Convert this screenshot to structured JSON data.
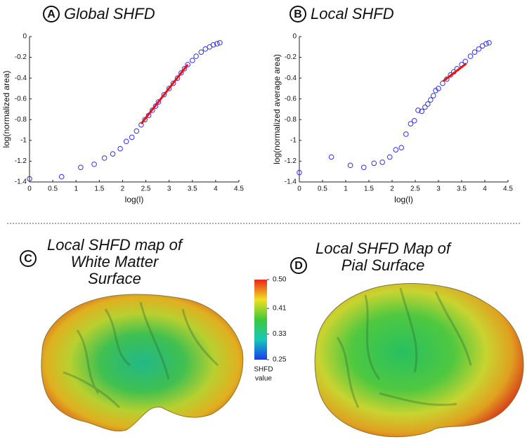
{
  "chart_data": [
    {
      "type": "scatter",
      "label": "A",
      "title": "Global SHFD",
      "xlabel": "log(l)",
      "ylabel": "log(normalized area)",
      "xlim": [
        0,
        4.5
      ],
      "ylim": [
        -1.4,
        0
      ],
      "xticks": [
        0,
        0.5,
        1,
        1.5,
        2,
        2.5,
        3,
        3.5,
        4,
        4.5
      ],
      "yticks": [
        -1.4,
        -1.2,
        -1,
        -0.8,
        -0.6,
        -0.4,
        -0.2,
        0
      ],
      "series": [
        {
          "color": "#3333ee",
          "marker": "circle",
          "x": [
            0,
            0.69,
            1.1,
            1.39,
            1.61,
            1.79,
            1.95,
            2.08,
            2.2,
            2.3,
            2.4,
            2.48,
            2.56,
            2.64,
            2.71,
            2.77,
            2.89,
            3.0,
            3.09,
            3.18,
            3.26,
            3.33,
            3.4,
            3.5,
            3.58,
            3.69,
            3.78,
            3.87,
            3.95,
            4.03,
            4.09
          ],
          "values": [
            -1.37,
            -1.35,
            -1.26,
            -1.23,
            -1.17,
            -1.13,
            -1.08,
            -1.01,
            -0.97,
            -0.91,
            -0.85,
            -0.8,
            -0.76,
            -0.71,
            -0.67,
            -0.63,
            -0.56,
            -0.5,
            -0.45,
            -0.4,
            -0.35,
            -0.31,
            -0.27,
            -0.23,
            -0.19,
            -0.15,
            -0.12,
            -0.1,
            -0.08,
            -0.07,
            -0.06
          ]
        },
        {
          "color": "#ee1111",
          "marker": "line",
          "x": [
            2.4,
            3.4
          ],
          "values": [
            -0.84,
            -0.27
          ]
        }
      ]
    },
    {
      "type": "scatter",
      "label": "B",
      "title": "Local SHFD",
      "xlabel": "log(l)",
      "ylabel": "log(normalized average area)",
      "xlim": [
        0,
        4.5
      ],
      "ylim": [
        -1.4,
        0
      ],
      "xticks": [
        0,
        0.5,
        1,
        1.5,
        2,
        2.5,
        3,
        3.5,
        4,
        4.5
      ],
      "yticks": [
        -1.4,
        -1.2,
        -1,
        -0.8,
        -0.6,
        -0.4,
        -0.2,
        0
      ],
      "series": [
        {
          "color": "#3333ee",
          "marker": "circle",
          "x": [
            0,
            0.69,
            1.1,
            1.39,
            1.61,
            1.79,
            1.95,
            2.08,
            2.2,
            2.3,
            2.4,
            2.48,
            2.56,
            2.64,
            2.71,
            2.77,
            2.83,
            2.89,
            2.94,
            3.0,
            3.09,
            3.18,
            3.26,
            3.33,
            3.4,
            3.5,
            3.58,
            3.69,
            3.78,
            3.87,
            3.95,
            4.03,
            4.09
          ],
          "values": [
            -1.31,
            -1.16,
            -1.24,
            -1.26,
            -1.22,
            -1.21,
            -1.16,
            -1.09,
            -1.07,
            -0.94,
            -0.84,
            -0.81,
            -0.71,
            -0.72,
            -0.68,
            -0.65,
            -0.61,
            -0.57,
            -0.52,
            -0.5,
            -0.45,
            -0.41,
            -0.37,
            -0.34,
            -0.31,
            -0.27,
            -0.24,
            -0.19,
            -0.15,
            -0.12,
            -0.09,
            -0.07,
            -0.06
          ]
        },
        {
          "color": "#ee1111",
          "marker": "line",
          "x": [
            3.1,
            3.6
          ],
          "values": [
            -0.43,
            -0.26
          ]
        }
      ]
    }
  ],
  "maps": [
    {
      "label": "C",
      "title": [
        "Local SHFD map of",
        "White Matter",
        "Surface"
      ]
    },
    {
      "label": "D",
      "title": [
        "Local SHFD Map of",
        "Pial Surface"
      ]
    }
  ],
  "colorbar": {
    "range": [
      0.25,
      0.5
    ],
    "ticks": [
      {
        "value": 0.5,
        "label": "0.50"
      },
      {
        "value": 0.41,
        "label": "0.41"
      },
      {
        "value": 0.33,
        "label": "0.33"
      },
      {
        "value": 0.25,
        "label": "0.25"
      }
    ],
    "label": [
      "SHFD",
      "value"
    ]
  }
}
